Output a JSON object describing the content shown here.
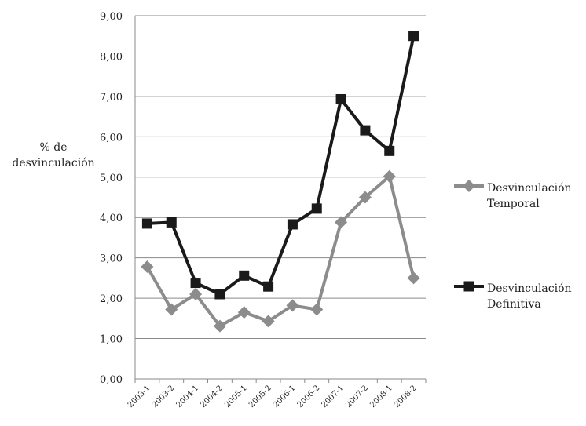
{
  "chart_data": {
    "type": "line",
    "ylabel_lines": [
      "% de",
      "desvinculación"
    ],
    "ylim": [
      0,
      9
    ],
    "yticks": [
      "0,00",
      "1,00",
      "2,00",
      "3,00",
      "4,00",
      "5,00",
      "6,00",
      "7,00",
      "8,00",
      "9,00"
    ],
    "grid": true,
    "legend_position": "right",
    "categories": [
      "2003-1",
      "2003-2",
      "2004-1",
      "2004-2",
      "2005-1",
      "2005-2",
      "2006-1",
      "2006-2",
      "2007-1",
      "2007-2",
      "2008-1",
      "2008-2"
    ],
    "series": [
      {
        "name_lines": [
          "Desvinculación",
          "Temporal"
        ],
        "marker": "diamond",
        "color": "#8c8c8c",
        "values": [
          2.78,
          1.72,
          2.1,
          1.31,
          1.65,
          1.43,
          1.82,
          1.72,
          3.88,
          4.5,
          5.02,
          2.5
        ]
      },
      {
        "name_lines": [
          "Desvinculación",
          "Definitiva"
        ],
        "marker": "square",
        "color": "#1a1a1a",
        "values": [
          3.85,
          3.88,
          2.38,
          2.1,
          2.56,
          2.29,
          3.83,
          4.22,
          6.93,
          6.16,
          5.65,
          8.5
        ]
      }
    ]
  }
}
